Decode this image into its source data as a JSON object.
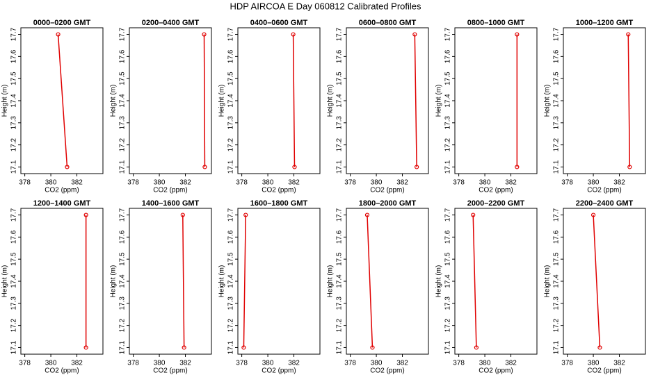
{
  "title": "HDP AIRCOA E  Day 060812  Calibrated Profiles",
  "chart_data": [
    {
      "type": "line",
      "title": "0000–0200 GMT",
      "xlabel": "CO2 (ppm)",
      "ylabel": "Height (m)",
      "x": [
        380.56,
        381.25
      ],
      "y": [
        17.7,
        17.1
      ],
      "color": "#e00000",
      "xlim": [
        377.7,
        384
      ],
      "ylim": [
        17.07,
        17.73
      ],
      "xticks": [
        378,
        380,
        382
      ],
      "yticks": [
        17.1,
        17.2,
        17.3,
        17.4,
        17.5,
        17.6,
        17.7
      ]
    },
    {
      "type": "line",
      "title": "0200–0400 GMT",
      "xlabel": "CO2 (ppm)",
      "ylabel": "Height (m)",
      "x": [
        383.44,
        383.49
      ],
      "y": [
        17.7,
        17.1
      ],
      "color": "#e00000",
      "xlim": [
        377.7,
        384
      ],
      "ylim": [
        17.07,
        17.73
      ],
      "xticks": [
        378,
        380,
        382
      ],
      "yticks": [
        17.1,
        17.2,
        17.3,
        17.4,
        17.5,
        17.6,
        17.7
      ]
    },
    {
      "type": "line",
      "title": "0400–0600 GMT",
      "xlabel": "CO2 (ppm)",
      "ylabel": "Height (m)",
      "x": [
        381.95,
        382.05
      ],
      "y": [
        17.7,
        17.1
      ],
      "color": "#e00000",
      "xlim": [
        377.7,
        384
      ],
      "ylim": [
        17.07,
        17.73
      ],
      "xticks": [
        378,
        380,
        382
      ],
      "yticks": [
        17.1,
        17.2,
        17.3,
        17.4,
        17.5,
        17.6,
        17.7
      ]
    },
    {
      "type": "line",
      "title": "0600–0800 GMT",
      "xlabel": "CO2 (ppm)",
      "ylabel": "Height (m)",
      "x": [
        382.95,
        383.1
      ],
      "y": [
        17.7,
        17.1
      ],
      "color": "#e00000",
      "xlim": [
        377.7,
        384
      ],
      "ylim": [
        17.07,
        17.73
      ],
      "xticks": [
        378,
        380,
        382
      ],
      "yticks": [
        17.1,
        17.2,
        17.3,
        17.4,
        17.5,
        17.6,
        17.7
      ]
    },
    {
      "type": "line",
      "title": "0800–1000 GMT",
      "xlabel": "CO2 (ppm)",
      "ylabel": "Height (m)",
      "x": [
        382.47,
        382.47
      ],
      "y": [
        17.7,
        17.1
      ],
      "color": "#e00000",
      "xlim": [
        377.7,
        384
      ],
      "ylim": [
        17.07,
        17.73
      ],
      "xticks": [
        378,
        380,
        382
      ],
      "yticks": [
        17.1,
        17.2,
        17.3,
        17.4,
        17.5,
        17.6,
        17.7
      ]
    },
    {
      "type": "line",
      "title": "1000–1200 GMT",
      "xlabel": "CO2 (ppm)",
      "ylabel": "Height (m)",
      "x": [
        382.68,
        382.79
      ],
      "y": [
        17.7,
        17.1
      ],
      "color": "#e00000",
      "xlim": [
        377.7,
        384
      ],
      "ylim": [
        17.07,
        17.73
      ],
      "xticks": [
        378,
        380,
        382
      ],
      "yticks": [
        17.1,
        17.2,
        17.3,
        17.4,
        17.5,
        17.6,
        17.7
      ]
    },
    {
      "type": "line",
      "title": "1200–1400 GMT",
      "xlabel": "CO2 (ppm)",
      "ylabel": "Height (m)",
      "x": [
        382.7,
        382.7
      ],
      "y": [
        17.7,
        17.1
      ],
      "color": "#e00000",
      "xlim": [
        377.7,
        384
      ],
      "ylim": [
        17.07,
        17.73
      ],
      "xticks": [
        378,
        380,
        382
      ],
      "yticks": [
        17.1,
        17.2,
        17.3,
        17.4,
        17.5,
        17.6,
        17.7
      ]
    },
    {
      "type": "line",
      "title": "1400–1600 GMT",
      "xlabel": "CO2 (ppm)",
      "ylabel": "Height (m)",
      "x": [
        381.8,
        381.9
      ],
      "y": [
        17.7,
        17.1
      ],
      "color": "#e00000",
      "xlim": [
        377.7,
        384
      ],
      "ylim": [
        17.07,
        17.73
      ],
      "xticks": [
        378,
        380,
        382
      ],
      "yticks": [
        17.1,
        17.2,
        17.3,
        17.4,
        17.5,
        17.6,
        17.7
      ]
    },
    {
      "type": "line",
      "title": "1600–1800 GMT",
      "xlabel": "CO2 (ppm)",
      "ylabel": "Height (m)",
      "x": [
        378.3,
        378.15
      ],
      "y": [
        17.7,
        17.1
      ],
      "color": "#e00000",
      "xlim": [
        377.7,
        384
      ],
      "ylim": [
        17.07,
        17.73
      ],
      "xticks": [
        378,
        380,
        382
      ],
      "yticks": [
        17.1,
        17.2,
        17.3,
        17.4,
        17.5,
        17.6,
        17.7
      ]
    },
    {
      "type": "line",
      "title": "1800–2000 GMT",
      "xlabel": "CO2 (ppm)",
      "ylabel": "Height (m)",
      "x": [
        379.3,
        379.7
      ],
      "y": [
        17.7,
        17.1
      ],
      "color": "#e00000",
      "xlim": [
        377.7,
        384
      ],
      "ylim": [
        17.07,
        17.73
      ],
      "xticks": [
        378,
        380,
        382
      ],
      "yticks": [
        17.1,
        17.2,
        17.3,
        17.4,
        17.5,
        17.6,
        17.7
      ]
    },
    {
      "type": "line",
      "title": "2000–2200 GMT",
      "xlabel": "CO2 (ppm)",
      "ylabel": "Height (m)",
      "x": [
        379.1,
        379.35
      ],
      "y": [
        17.7,
        17.1
      ],
      "color": "#e00000",
      "xlim": [
        377.7,
        384
      ],
      "ylim": [
        17.07,
        17.73
      ],
      "xticks": [
        378,
        380,
        382
      ],
      "yticks": [
        17.1,
        17.2,
        17.3,
        17.4,
        17.5,
        17.6,
        17.7
      ]
    },
    {
      "type": "line",
      "title": "2200–2400 GMT",
      "xlabel": "CO2 (ppm)",
      "ylabel": "Height (m)",
      "x": [
        380.0,
        380.5
      ],
      "y": [
        17.7,
        17.1
      ],
      "color": "#e00000",
      "xlim": [
        377.7,
        384
      ],
      "ylim": [
        17.07,
        17.73
      ],
      "xticks": [
        378,
        380,
        382
      ],
      "yticks": [
        17.1,
        17.2,
        17.3,
        17.4,
        17.5,
        17.6,
        17.7
      ]
    }
  ]
}
